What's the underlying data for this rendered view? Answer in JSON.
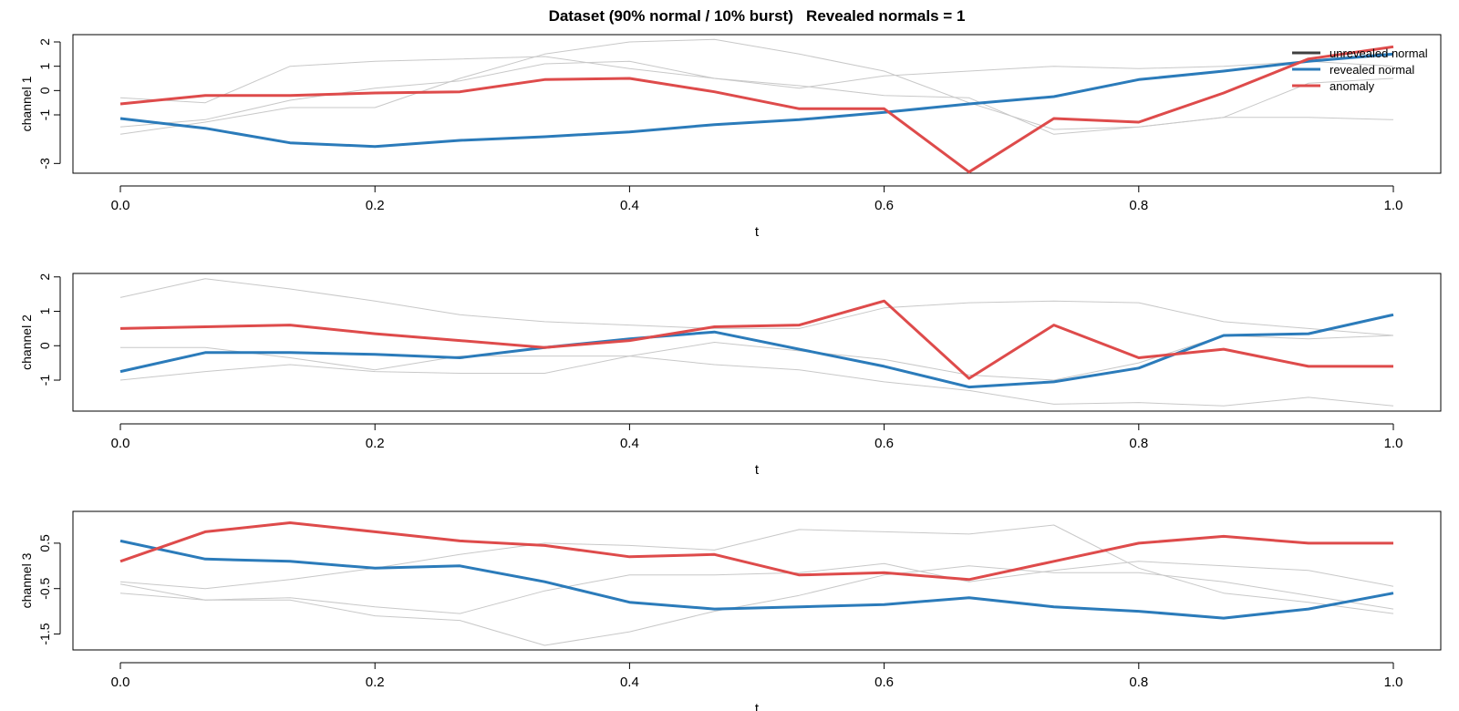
{
  "title": "Dataset (90% normal / 10% burst)   Revealed normals = 1",
  "colors": {
    "unrevealed_normal": "#c8c8c8",
    "unrevealed_normal_legend": "#404040",
    "revealed_normal": "#2b7bba",
    "anomaly": "#de4b4b"
  },
  "legend": {
    "position": "top-right",
    "entries": [
      {
        "label": "unrevealed normal",
        "color_key": "unrevealed_normal_legend"
      },
      {
        "label": "revealed normal",
        "color_key": "revealed_normal"
      },
      {
        "label": "anomaly",
        "color_key": "anomaly"
      }
    ]
  },
  "chart_data": [
    {
      "type": "line",
      "xlabel": "t",
      "ylabel": "channel 1",
      "xlim": [
        0,
        1
      ],
      "ylim": [
        -3.4,
        2.3
      ],
      "xticks": [
        "0.0",
        "0.2",
        "0.4",
        "0.6",
        "0.8",
        "1.0"
      ],
      "yticks": [
        "-3",
        "-1",
        "0",
        "1",
        "2"
      ],
      "grid": false,
      "x": [
        0,
        0.0667,
        0.1333,
        0.2,
        0.2667,
        0.3333,
        0.4,
        0.4667,
        0.5333,
        0.6,
        0.6667,
        0.7333,
        0.8,
        0.8667,
        0.9333,
        1.0
      ],
      "series": [
        {
          "role": "unrevealed",
          "values": [
            -0.3,
            -0.5,
            1.0,
            1.2,
            1.3,
            1.4,
            0.9,
            0.5,
            0.2,
            -0.2,
            -0.3,
            -1.8,
            -1.5,
            -1.1,
            0.3,
            0.5
          ]
        },
        {
          "role": "unrevealed",
          "values": [
            -1.8,
            -1.3,
            -0.7,
            -0.7,
            0.5,
            1.5,
            2.0,
            2.1,
            1.5,
            0.8,
            -0.5,
            -1.6,
            -1.5,
            -1.1,
            -1.1,
            -1.2
          ]
        },
        {
          "role": "unrevealed",
          "values": [
            -1.5,
            -1.2,
            -0.4,
            0.1,
            0.4,
            1.1,
            1.2,
            0.5,
            0.1,
            0.6,
            0.8,
            1.0,
            0.9,
            1.0,
            1.2,
            1.0
          ]
        },
        {
          "role": "revealed",
          "values": [
            -1.15,
            -1.55,
            -2.15,
            -2.3,
            -2.05,
            -1.9,
            -1.7,
            -1.4,
            -1.2,
            -0.9,
            -0.55,
            -0.25,
            0.45,
            0.8,
            1.2,
            1.5
          ]
        },
        {
          "role": "anomaly",
          "values": [
            -0.55,
            -0.2,
            -0.2,
            -0.1,
            -0.05,
            0.45,
            0.5,
            -0.05,
            -0.75,
            -0.75,
            -3.35,
            -1.15,
            -1.3,
            -0.1,
            1.3,
            1.8
          ]
        }
      ]
    },
    {
      "type": "line",
      "xlabel": "t",
      "ylabel": "channel 2",
      "xlim": [
        0,
        1
      ],
      "ylim": [
        -1.9,
        2.1
      ],
      "xticks": [
        "0.0",
        "0.2",
        "0.4",
        "0.6",
        "0.8",
        "1.0"
      ],
      "yticks": [
        "-1",
        "0",
        "1",
        "2"
      ],
      "grid": false,
      "x": [
        0,
        0.0667,
        0.1333,
        0.2,
        0.2667,
        0.3333,
        0.4,
        0.4667,
        0.5333,
        0.6,
        0.6667,
        0.7333,
        0.8,
        0.8667,
        0.9333,
        1.0
      ],
      "series": [
        {
          "role": "unrevealed",
          "values": [
            1.4,
            1.95,
            1.65,
            1.3,
            0.9,
            0.7,
            0.6,
            0.5,
            0.5,
            1.1,
            1.25,
            1.3,
            1.25,
            0.7,
            0.5,
            0.3
          ]
        },
        {
          "role": "unrevealed",
          "values": [
            -1.0,
            -0.75,
            -0.55,
            -0.75,
            -0.8,
            -0.8,
            -0.3,
            0.1,
            -0.15,
            -0.4,
            -0.85,
            -1.0,
            -0.5,
            0.3,
            0.2,
            0.3
          ]
        },
        {
          "role": "unrevealed",
          "values": [
            -0.05,
            -0.05,
            -0.35,
            -0.7,
            -0.3,
            -0.3,
            -0.3,
            -0.55,
            -0.7,
            -1.05,
            -1.3,
            -1.7,
            -1.65,
            -1.75,
            -1.5,
            -1.75
          ]
        },
        {
          "role": "revealed",
          "values": [
            -0.75,
            -0.2,
            -0.2,
            -0.25,
            -0.35,
            -0.05,
            0.2,
            0.4,
            -0.1,
            -0.6,
            -1.2,
            -1.05,
            -0.65,
            0.3,
            0.35,
            0.9
          ]
        },
        {
          "role": "anomaly",
          "values": [
            0.5,
            0.55,
            0.6,
            0.35,
            0.15,
            -0.05,
            0.15,
            0.55,
            0.6,
            1.3,
            -0.95,
            0.6,
            -0.35,
            -0.1,
            -0.6,
            -0.6
          ]
        }
      ]
    },
    {
      "type": "line",
      "xlabel": "t",
      "ylabel": "channel 3",
      "xlim": [
        0,
        1
      ],
      "ylim": [
        -1.85,
        1.2
      ],
      "xticks": [
        "0.0",
        "0.2",
        "0.4",
        "0.6",
        "0.8",
        "1.0"
      ],
      "yticks": [
        "-1.5",
        "-0.5",
        "0.5"
      ],
      "grid": false,
      "x": [
        0,
        0.0667,
        0.1333,
        0.2,
        0.2667,
        0.3333,
        0.4,
        0.4667,
        0.5333,
        0.6,
        0.6667,
        0.7333,
        0.8,
        0.8667,
        0.9333,
        1.0
      ],
      "series": [
        {
          "role": "unrevealed",
          "values": [
            -0.35,
            -0.5,
            -0.3,
            -0.05,
            0.25,
            0.5,
            0.45,
            0.35,
            0.8,
            0.75,
            0.7,
            0.9,
            -0.05,
            -0.6,
            -0.8,
            -1.05
          ]
        },
        {
          "role": "unrevealed",
          "values": [
            -0.6,
            -0.75,
            -0.75,
            -1.1,
            -1.2,
            -1.75,
            -1.45,
            -1.0,
            -0.65,
            -0.2,
            0.0,
            -0.15,
            -0.15,
            -0.35,
            -0.65,
            -0.95
          ]
        },
        {
          "role": "unrevealed",
          "values": [
            -0.4,
            -0.75,
            -0.7,
            -0.9,
            -1.05,
            -0.55,
            -0.2,
            -0.2,
            -0.15,
            0.05,
            -0.35,
            -0.1,
            0.1,
            0.0,
            -0.1,
            -0.45
          ]
        },
        {
          "role": "revealed",
          "values": [
            0.55,
            0.15,
            0.1,
            -0.05,
            0.0,
            -0.35,
            -0.8,
            -0.95,
            -0.9,
            -0.85,
            -0.7,
            -0.9,
            -1.0,
            -1.15,
            -0.95,
            -0.6
          ]
        },
        {
          "role": "anomaly",
          "values": [
            0.1,
            0.75,
            0.95,
            0.75,
            0.55,
            0.45,
            0.2,
            0.25,
            -0.2,
            -0.15,
            -0.3,
            0.1,
            0.5,
            0.65,
            0.5,
            0.5
          ]
        }
      ]
    }
  ]
}
